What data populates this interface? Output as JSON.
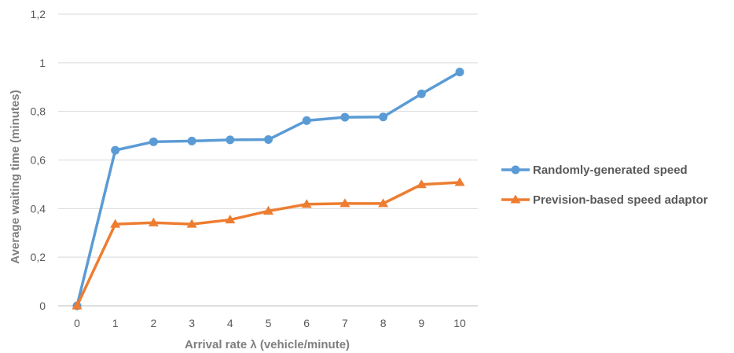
{
  "chart_data": {
    "type": "line",
    "xlabel": "Arrival rate λ (vehicle/minute)",
    "ylabel": "Average waiting time (minutes)",
    "x": [
      0,
      1,
      2,
      3,
      4,
      5,
      6,
      7,
      8,
      9,
      10
    ],
    "x_tick_labels": [
      "0",
      "1",
      "2",
      "3",
      "4",
      "5",
      "6",
      "7",
      "8",
      "9",
      "10"
    ],
    "ylim": [
      0,
      1.2
    ],
    "y_ticks": [
      0,
      0.2,
      0.4,
      0.6,
      0.8,
      1,
      1.2
    ],
    "y_tick_labels": [
      "0",
      "0,2",
      "0,4",
      "0,6",
      "0,8",
      "1",
      "1,2"
    ],
    "grid": true,
    "legend_position": "right",
    "series": [
      {
        "name": "Randomly-generated speed",
        "color": "#5b9bd5",
        "marker": "circle",
        "values": [
          0,
          0.64,
          0.675,
          0.678,
          0.683,
          0.684,
          0.762,
          0.776,
          0.777,
          0.872,
          0.962
        ]
      },
      {
        "name": "Prevision-based speed adaptor",
        "color": "#ed7d31",
        "marker": "triangle",
        "values": [
          0,
          0.336,
          0.342,
          0.336,
          0.354,
          0.39,
          0.418,
          0.421,
          0.421,
          0.499,
          0.508
        ]
      }
    ]
  }
}
